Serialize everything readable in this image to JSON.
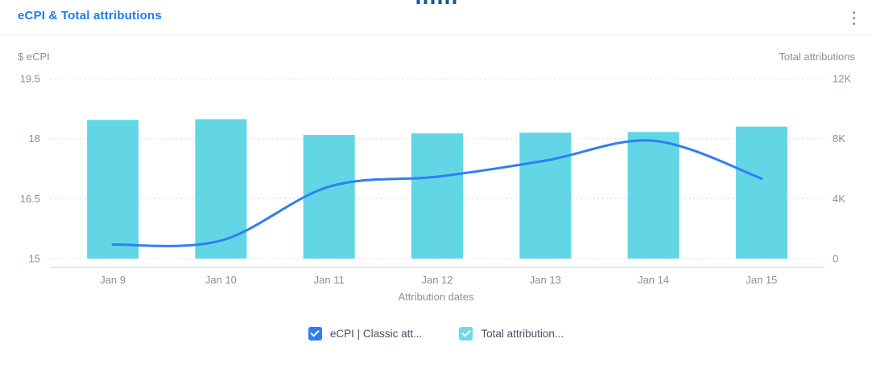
{
  "header": {
    "title": "eCPI & Total attributions",
    "icons": {
      "drag_handle": "drag-handle-dots",
      "menu": "kebab-vertical-dots"
    },
    "drag_dot_count": 6
  },
  "axes": {
    "left_caption": "$ eCPI",
    "right_caption": "Total attributions",
    "x_title": "Attribution dates"
  },
  "legend": {
    "items": [
      {
        "label": "eCPI | Classic att...",
        "color": "#2b7ff2",
        "checked": true
      },
      {
        "label": "Total attribution...",
        "color": "#6fd9e7",
        "checked": true
      }
    ]
  },
  "colors": {
    "title_blue": "#1e7cf0",
    "line_blue": "#2f7ff2",
    "bar_cyan": "#62d6e4",
    "grid_dotted": "#dcdde4",
    "axis_line": "#d9dff1",
    "tick_text": "#8b8f99",
    "legend_text": "#4c4e66",
    "header_divider": "#eaecf4",
    "drag_dot_navy": "#1d5494",
    "kebab_gray": "#8f939c"
  },
  "chart_data": {
    "type": "combo",
    "categories": [
      "Jan 9",
      "Jan 10",
      "Jan 11",
      "Jan 12",
      "Jan 13",
      "Jan 14",
      "Jan 15"
    ],
    "series": [
      {
        "name": "Total attribution...",
        "type": "bar",
        "axis": "right",
        "color": "#62d6e4",
        "values": [
          9250,
          9300,
          8250,
          8350,
          8400,
          8450,
          8800
        ]
      },
      {
        "name": "eCPI | Classic att...",
        "type": "line",
        "axis": "left",
        "color": "#2f7ff2",
        "values": [
          15.35,
          15.45,
          16.8,
          17.05,
          17.45,
          17.95,
          17.0
        ]
      }
    ],
    "left_axis": {
      "title": "$ eCPI",
      "ticks": [
        "15",
        "16.5",
        "18",
        "19.5"
      ],
      "tick_values": [
        15,
        16.5,
        18,
        19.5
      ],
      "range": [
        15,
        19.5
      ]
    },
    "right_axis": {
      "title": "Total attributions",
      "ticks": [
        "0",
        "4K",
        "8K",
        "12K"
      ],
      "tick_values": [
        0,
        4000,
        8000,
        12000
      ],
      "range": [
        0,
        12000
      ]
    },
    "xlabel": "Attribution dates",
    "grid": "dotted-horizontal",
    "legend_position": "bottom-center"
  }
}
